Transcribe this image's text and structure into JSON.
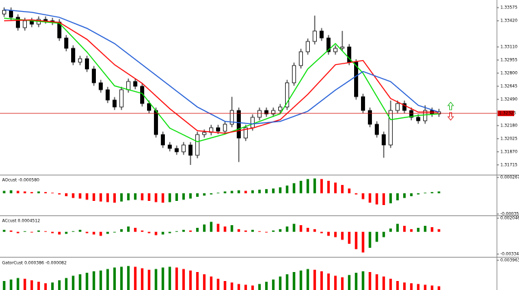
{
  "chart_data": [
    {
      "type": "candlestick",
      "open": [
        1.335,
        1.33542,
        1.33461,
        1.33338,
        1.3342,
        1.33379,
        1.33436,
        1.3342,
        1.33404,
        1.33216,
        1.33094,
        1.3293,
        1.32971,
        1.32849,
        1.32686,
        1.32604,
        1.32482,
        1.324,
        1.32604,
        1.32702,
        1.32645,
        1.32441,
        1.32359,
        1.32074,
        1.31951,
        1.3191,
        1.3187,
        1.31951,
        1.31829,
        1.32074,
        1.321,
        1.32155,
        1.32114,
        1.32196,
        1.32359,
        1.32033,
        1.32155,
        1.32278,
        1.32359,
        1.32318,
        1.32359,
        1.324,
        1.32686,
        1.3289,
        1.33053,
        1.33175,
        1.33298,
        1.33216,
        1.33053,
        1.33094,
        1.3311,
        1.3293,
        1.32522,
        1.32359,
        1.32196,
        1.32074,
        1.31951,
        1.32359,
        1.32441,
        1.32359,
        1.32278,
        1.32237,
        1.32359,
        1.32318
      ],
      "high": [
        1.33577,
        1.33577,
        1.33496,
        1.33455,
        1.33455,
        1.33471,
        1.33471,
        1.33455,
        1.33439,
        1.33251,
        1.33129,
        1.33006,
        1.33006,
        1.32884,
        1.32721,
        1.32639,
        1.32517,
        1.32639,
        1.32737,
        1.32737,
        1.3268,
        1.32476,
        1.32394,
        1.32109,
        1.31986,
        1.31945,
        1.31986,
        1.31986,
        1.32109,
        1.32135,
        1.3219,
        1.3219,
        1.32231,
        1.3252,
        1.32394,
        1.3219,
        1.32313,
        1.32394,
        1.32394,
        1.32394,
        1.32435,
        1.32721,
        1.32925,
        1.33088,
        1.3321,
        1.3348,
        1.33333,
        1.33251,
        1.33129,
        1.333,
        1.33145,
        1.32965,
        1.32557,
        1.32394,
        1.32231,
        1.32109,
        1.32476,
        1.32476,
        1.32476,
        1.32394,
        1.32313,
        1.3242,
        1.32394,
        1.32378
      ],
      "low": [
        1.33465,
        1.33426,
        1.33303,
        1.33303,
        1.33344,
        1.33344,
        1.33385,
        1.33369,
        1.33181,
        1.33059,
        1.32895,
        1.32895,
        1.32814,
        1.32651,
        1.32569,
        1.32447,
        1.32365,
        1.32365,
        1.32569,
        1.3261,
        1.32406,
        1.32324,
        1.32039,
        1.31916,
        1.31875,
        1.31835,
        1.31835,
        1.31715,
        1.31794,
        1.32039,
        1.32065,
        1.32079,
        1.32079,
        1.32161,
        1.3175,
        1.31998,
        1.3212,
        1.32243,
        1.32283,
        1.32283,
        1.32324,
        1.32365,
        1.32651,
        1.32855,
        1.33018,
        1.3314,
        1.33181,
        1.33018,
        1.33018,
        1.33059,
        1.32895,
        1.32487,
        1.32324,
        1.32161,
        1.32039,
        1.318,
        1.31916,
        1.32324,
        1.32324,
        1.32243,
        1.32202,
        1.32202,
        1.32283,
        1.32283
      ],
      "close": [
        1.33542,
        1.33461,
        1.33338,
        1.3342,
        1.33379,
        1.33436,
        1.3342,
        1.33404,
        1.33216,
        1.33094,
        1.3293,
        1.32971,
        1.32849,
        1.32686,
        1.32604,
        1.32482,
        1.324,
        1.32604,
        1.32702,
        1.32645,
        1.32441,
        1.32359,
        1.32074,
        1.31951,
        1.3191,
        1.3187,
        1.31951,
        1.31829,
        1.32074,
        1.321,
        1.32155,
        1.32114,
        1.32196,
        1.32359,
        1.32033,
        1.32155,
        1.32278,
        1.32359,
        1.32318,
        1.32359,
        1.324,
        1.32686,
        1.3289,
        1.33053,
        1.33175,
        1.33298,
        1.33216,
        1.33053,
        1.33094,
        1.3311,
        1.3293,
        1.32522,
        1.32359,
        1.32196,
        1.32074,
        1.31951,
        1.32359,
        1.32441,
        1.32359,
        1.32278,
        1.32237,
        1.32359,
        1.32318,
        1.32343
      ],
      "up_color": "#ffffff",
      "down_color": "#000000",
      "series": [
        {
          "color": "#00dd00",
          "x": [
            0,
            4,
            8,
            12,
            16,
            20,
            24,
            28,
            32,
            36,
            40,
            44,
            48,
            52,
            56,
            60,
            63
          ],
          "values": [
            1.3345,
            1.3342,
            1.3339,
            1.3305,
            1.3265,
            1.3256,
            1.3215,
            1.3199,
            1.3208,
            1.322,
            1.3232,
            1.3285,
            1.3315,
            1.328,
            1.3225,
            1.323,
            1.3232
          ]
        },
        {
          "color": "#ff0000",
          "x": [
            0,
            4,
            8,
            12,
            16,
            20,
            24,
            28,
            32,
            36,
            40,
            44,
            48,
            52,
            56,
            60,
            63
          ],
          "values": [
            1.3342,
            1.3343,
            1.334,
            1.332,
            1.329,
            1.3268,
            1.3238,
            1.3212,
            1.3209,
            1.3215,
            1.3225,
            1.3255,
            1.329,
            1.3295,
            1.325,
            1.3234,
            1.3234
          ]
        },
        {
          "color": "#1e5bd6",
          "x": [
            0,
            4,
            8,
            12,
            16,
            20,
            24,
            28,
            32,
            36,
            40,
            44,
            48,
            52,
            56,
            60,
            63
          ],
          "values": [
            1.3355,
            1.3352,
            1.3346,
            1.3333,
            1.3315,
            1.329,
            1.3265,
            1.324,
            1.3223,
            1.322,
            1.3223,
            1.3235,
            1.326,
            1.3282,
            1.327,
            1.3242,
            1.3234
          ]
        }
      ],
      "current_price": 1.32325,
      "current_color": "#d40000",
      "ylim": [
        1.31608,
        1.33665
      ],
      "yticks": [
        1.33575,
        {
          "value": 1.3342,
          "label": "1.33420"
        },
        {
          "value": 1.3311,
          "label": "1.33110"
        },
        1.32955,
        {
          "value": 1.328,
          "label": "1.32800"
        },
        1.32645,
        {
          "value": 1.3249,
          "label": "1.32490"
        },
        {
          "value": 1.3218,
          "label": "1.32180"
        },
        1.32025,
        {
          "value": 1.3187,
          "label": "1.31870"
        },
        1.31715
      ]
    },
    {
      "type": "bar",
      "title": "AOcust -0.000580",
      "up_color": "#008000",
      "down_color": "#ff0000",
      "values": [
        4e-05,
        5e-05,
        4e-05,
        3e-05,
        2e-05,
        3e-05,
        2e-05,
        1e-05,
        -2e-05,
        -5e-05,
        -8e-05,
        -9e-05,
        -0.00011,
        -0.00013,
        -0.00014,
        -0.00015,
        -0.00016,
        -0.00014,
        -0.00012,
        -0.00011,
        -0.00012,
        -0.00013,
        -0.00015,
        -0.00016,
        -0.00015,
        -0.00013,
        -0.00011,
        -9e-05,
        -6e-05,
        -4e-05,
        -2e-05,
        1e-05,
        3e-05,
        4e-05,
        5e-05,
        4e-05,
        5e-05,
        6e-05,
        7e-05,
        8e-05,
        0.0001,
        0.00013,
        0.00017,
        0.00021,
        0.00024,
        0.00025,
        0.00024,
        0.00021,
        0.00018,
        0.00014,
        8e-05,
        -2e-05,
        -0.0001,
        -0.00016,
        -0.00019,
        -0.0002,
        -0.00017,
        -0.00012,
        -8e-05,
        -5e-05,
        -2e-05,
        1e-05,
        2e-05,
        3e-05
      ],
      "ylim": [
        -0.000352,
        0.000267
      ],
      "yticks": [
        0.000267,
        -0.000352
      ]
    },
    {
      "type": "bar",
      "title": "ACcust 0.0004512",
      "up_color": "#008000",
      "down_color": "#ff0000",
      "values": [
        0.0003,
        0.0002,
        -0.0002,
        0.0001,
        -0.0001,
        0.0002,
        0.0001,
        -0.0002,
        -0.0004,
        -0.0003,
        0.0001,
        0.0003,
        -0.0002,
        -0.0004,
        -0.0006,
        -0.0003,
        -0.0001,
        0.0004,
        0.0008,
        0.0006,
        0.0002,
        -0.0002,
        -0.0005,
        -0.0004,
        -0.0002,
        0.0001,
        0.0003,
        0.0002,
        0.0006,
        0.0011,
        0.0015,
        0.0012,
        0.0008,
        0.001,
        0.0004,
        0.0002,
        0.0003,
        0.0001,
        -0.0001,
        0.0002,
        0.0004,
        0.0008,
        0.0012,
        0.001,
        0.0006,
        0.0004,
        -0.0002,
        -0.0006,
        -0.0008,
        -0.0012,
        -0.0018,
        -0.0026,
        -0.0031,
        -0.0024,
        -0.0015,
        -0.0008,
        0.0005,
        0.0012,
        0.0009,
        0.0004,
        0.0006,
        0.0009,
        0.0007,
        0.0004
      ],
      "ylim": [
        -0.0033442,
        0.0020465
      ],
      "yticks": [
        0.0020465,
        -0.0033442
      ]
    },
    {
      "type": "bar",
      "title": "GatorCust 0.000386 -0.000082",
      "up_color": "#008000",
      "down_color": "#ff0000",
      "values": [
        0.0012,
        0.0014,
        0.0016,
        0.0015,
        0.0013,
        0.0011,
        0.0009,
        0.001,
        0.0013,
        0.0016,
        0.0019,
        0.0021,
        0.0023,
        0.0025,
        0.0026,
        0.0028,
        0.003,
        0.0031,
        0.0032,
        0.0031,
        0.0029,
        0.0027,
        0.0028,
        0.003,
        0.0031,
        0.003,
        0.0028,
        0.0026,
        0.0024,
        0.0021,
        0.0018,
        0.0015,
        0.0012,
        0.001,
        0.0008,
        0.0007,
        0.0006,
        0.0008,
        0.0011,
        0.0014,
        0.0018,
        0.0021,
        0.0024,
        0.0026,
        0.0028,
        0.0027,
        0.0025,
        0.0022,
        0.0019,
        0.0017,
        0.002,
        0.0023,
        0.0025,
        0.0024,
        0.0021,
        0.0018,
        0.0015,
        0.0012,
        0.001,
        0.0009,
        0.0008,
        0.0007,
        0.0006,
        0.0005
      ],
      "ylim": [
        0,
        0.003963
      ],
      "yticks": [
        0.003963
      ]
    }
  ]
}
